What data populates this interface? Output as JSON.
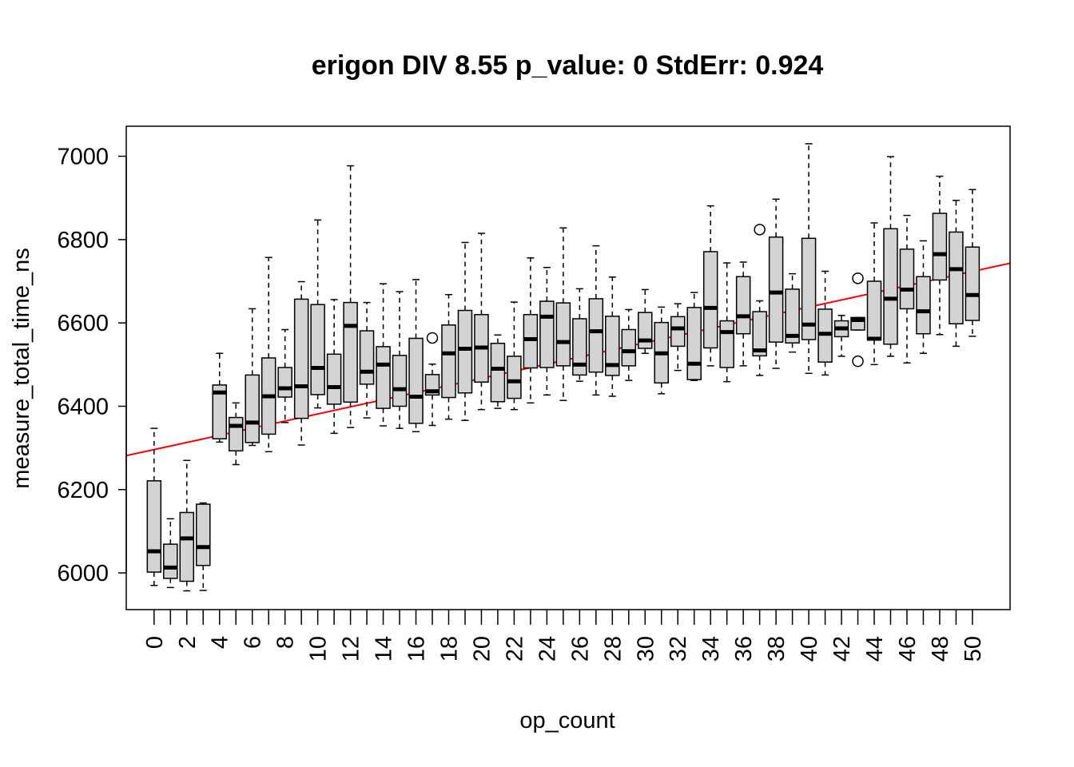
{
  "chart_data": {
    "type": "box",
    "title": "erigon DIV 8.55 p_value: 0 StdErr: 0.924",
    "xlabel": "op_count",
    "ylabel": "measure_total_time_ns",
    "x_categories": [
      0,
      1,
      2,
      3,
      4,
      5,
      6,
      7,
      8,
      9,
      10,
      11,
      12,
      13,
      14,
      15,
      16,
      17,
      18,
      19,
      20,
      21,
      22,
      23,
      24,
      25,
      26,
      27,
      28,
      29,
      30,
      31,
      32,
      33,
      34,
      35,
      36,
      37,
      38,
      39,
      40,
      41,
      42,
      43,
      44,
      45,
      46,
      47,
      48,
      49,
      50
    ],
    "x_tick_labels": [
      "0",
      "2",
      "4",
      "6",
      "8",
      "10",
      "12",
      "14",
      "16",
      "18",
      "20",
      "22",
      "24",
      "26",
      "28",
      "30",
      "32",
      "34",
      "36",
      "38",
      "40",
      "42",
      "44",
      "46",
      "48",
      "50"
    ],
    "y_ticks": [
      6000,
      6200,
      6400,
      6600,
      6800,
      7000
    ],
    "y_tick_labels": [
      "6000",
      "6200",
      "6400",
      "6600",
      "6800",
      "7000"
    ],
    "ylim": [
      5912,
      7072
    ],
    "xlim": [
      -1.7,
      52.3
    ],
    "box_fill": "#d3d3d3",
    "line_color": "#000000",
    "regression": {
      "color": "#ff0000",
      "intercept": 6296,
      "slope": 8.55
    },
    "boxes": [
      {
        "x": 0,
        "min": 5970,
        "q1": 6002,
        "median": 6052,
        "q3": 6221,
        "max": 6347,
        "outliers": []
      },
      {
        "x": 1,
        "min": 5965,
        "q1": 5987,
        "median": 6013,
        "q3": 6069,
        "max": 6130,
        "outliers": []
      },
      {
        "x": 2,
        "min": 5957,
        "q1": 5980,
        "median": 6083,
        "q3": 6145,
        "max": 6270,
        "outliers": []
      },
      {
        "x": 3,
        "min": 5958,
        "q1": 6018,
        "median": 6062,
        "q3": 6165,
        "max": 6168,
        "outliers": []
      },
      {
        "x": 4,
        "min": 6314,
        "q1": 6322,
        "median": 6433,
        "q3": 6451,
        "max": 6527,
        "outliers": []
      },
      {
        "x": 5,
        "min": 6260,
        "q1": 6293,
        "median": 6353,
        "q3": 6373,
        "max": 6408,
        "outliers": []
      },
      {
        "x": 6,
        "min": 6306,
        "q1": 6313,
        "median": 6361,
        "q3": 6475,
        "max": 6634,
        "outliers": []
      },
      {
        "x": 7,
        "min": 6291,
        "q1": 6333,
        "median": 6424,
        "q3": 6516,
        "max": 6757,
        "outliers": []
      },
      {
        "x": 8,
        "min": 6361,
        "q1": 6422,
        "median": 6443,
        "q3": 6493,
        "max": 6584,
        "outliers": []
      },
      {
        "x": 9,
        "min": 6307,
        "q1": 6371,
        "median": 6448,
        "q3": 6657,
        "max": 6699,
        "outliers": []
      },
      {
        "x": 10,
        "min": 6396,
        "q1": 6428,
        "median": 6492,
        "q3": 6644,
        "max": 6847,
        "outliers": []
      },
      {
        "x": 11,
        "min": 6335,
        "q1": 6405,
        "median": 6446,
        "q3": 6525,
        "max": 6656,
        "outliers": []
      },
      {
        "x": 12,
        "min": 6349,
        "q1": 6410,
        "median": 6593,
        "q3": 6649,
        "max": 6977,
        "outliers": []
      },
      {
        "x": 13,
        "min": 6372,
        "q1": 6453,
        "median": 6483,
        "q3": 6581,
        "max": 6649,
        "outliers": []
      },
      {
        "x": 14,
        "min": 6353,
        "q1": 6395,
        "median": 6500,
        "q3": 6543,
        "max": 6694,
        "outliers": []
      },
      {
        "x": 15,
        "min": 6347,
        "q1": 6400,
        "median": 6441,
        "q3": 6522,
        "max": 6675,
        "outliers": []
      },
      {
        "x": 16,
        "min": 6339,
        "q1": 6359,
        "median": 6423,
        "q3": 6563,
        "max": 6704,
        "outliers": []
      },
      {
        "x": 17,
        "min": 6354,
        "q1": 6427,
        "median": 6436,
        "q3": 6476,
        "max": 6501,
        "outliers": [
          6564
        ]
      },
      {
        "x": 18,
        "min": 6369,
        "q1": 6421,
        "median": 6527,
        "q3": 6595,
        "max": 6668,
        "outliers": []
      },
      {
        "x": 19,
        "min": 6366,
        "q1": 6432,
        "median": 6538,
        "q3": 6630,
        "max": 6793,
        "outliers": []
      },
      {
        "x": 20,
        "min": 6392,
        "q1": 6458,
        "median": 6541,
        "q3": 6620,
        "max": 6815,
        "outliers": []
      },
      {
        "x": 21,
        "min": 6395,
        "q1": 6411,
        "median": 6490,
        "q3": 6551,
        "max": 6571,
        "outliers": []
      },
      {
        "x": 22,
        "min": 6392,
        "q1": 6419,
        "median": 6460,
        "q3": 6520,
        "max": 6650,
        "outliers": []
      },
      {
        "x": 23,
        "min": 6408,
        "q1": 6492,
        "median": 6561,
        "q3": 6620,
        "max": 6756,
        "outliers": []
      },
      {
        "x": 24,
        "min": 6427,
        "q1": 6493,
        "median": 6615,
        "q3": 6652,
        "max": 6733,
        "outliers": []
      },
      {
        "x": 25,
        "min": 6414,
        "q1": 6497,
        "median": 6554,
        "q3": 6648,
        "max": 6828,
        "outliers": []
      },
      {
        "x": 26,
        "min": 6460,
        "q1": 6475,
        "median": 6500,
        "q3": 6610,
        "max": 6682,
        "outliers": []
      },
      {
        "x": 27,
        "min": 6427,
        "q1": 6482,
        "median": 6580,
        "q3": 6658,
        "max": 6785,
        "outliers": []
      },
      {
        "x": 28,
        "min": 6424,
        "q1": 6474,
        "median": 6499,
        "q3": 6616,
        "max": 6710,
        "outliers": []
      },
      {
        "x": 29,
        "min": 6462,
        "q1": 6497,
        "median": 6532,
        "q3": 6584,
        "max": 6632,
        "outliers": []
      },
      {
        "x": 30,
        "min": 6527,
        "q1": 6539,
        "median": 6558,
        "q3": 6625,
        "max": 6680,
        "outliers": []
      },
      {
        "x": 31,
        "min": 6430,
        "q1": 6456,
        "median": 6527,
        "q3": 6601,
        "max": 6638,
        "outliers": []
      },
      {
        "x": 32,
        "min": 6486,
        "q1": 6544,
        "median": 6587,
        "q3": 6615,
        "max": 6646,
        "outliers": []
      },
      {
        "x": 33,
        "min": 6462,
        "q1": 6464,
        "median": 6502,
        "q3": 6637,
        "max": 6673,
        "outliers": []
      },
      {
        "x": 34,
        "min": 6497,
        "q1": 6540,
        "median": 6636,
        "q3": 6771,
        "max": 6881,
        "outliers": []
      },
      {
        "x": 35,
        "min": 6459,
        "q1": 6493,
        "median": 6578,
        "q3": 6605,
        "max": 6744,
        "outliers": []
      },
      {
        "x": 36,
        "min": 6497,
        "q1": 6574,
        "median": 6616,
        "q3": 6711,
        "max": 6746,
        "outliers": []
      },
      {
        "x": 37,
        "min": 6474,
        "q1": 6521,
        "median": 6534,
        "q3": 6627,
        "max": 6653,
        "outliers": [
          6824
        ]
      },
      {
        "x": 38,
        "min": 6491,
        "q1": 6554,
        "median": 6673,
        "q3": 6806,
        "max": 6897,
        "outliers": []
      },
      {
        "x": 39,
        "min": 6530,
        "q1": 6552,
        "median": 6569,
        "q3": 6681,
        "max": 6718,
        "outliers": []
      },
      {
        "x": 40,
        "min": 6479,
        "q1": 6560,
        "median": 6596,
        "q3": 6803,
        "max": 7030,
        "outliers": []
      },
      {
        "x": 41,
        "min": 6475,
        "q1": 6506,
        "median": 6574,
        "q3": 6633,
        "max": 6724,
        "outliers": []
      },
      {
        "x": 42,
        "min": 6520,
        "q1": 6567,
        "median": 6587,
        "q3": 6605,
        "max": 6618,
        "outliers": []
      },
      {
        "x": 43,
        "min": 6583,
        "q1": 6583,
        "median": 6607,
        "q3": 6613,
        "max": 6613,
        "outliers": [
          6707,
          6508
        ]
      },
      {
        "x": 44,
        "min": 6500,
        "q1": 6559,
        "median": 6562,
        "q3": 6700,
        "max": 6840,
        "outliers": []
      },
      {
        "x": 45,
        "min": 6520,
        "q1": 6549,
        "median": 6658,
        "q3": 6826,
        "max": 6999,
        "outliers": []
      },
      {
        "x": 46,
        "min": 6504,
        "q1": 6634,
        "median": 6680,
        "q3": 6777,
        "max": 6858,
        "outliers": []
      },
      {
        "x": 47,
        "min": 6527,
        "q1": 6574,
        "median": 6628,
        "q3": 6711,
        "max": 6797,
        "outliers": []
      },
      {
        "x": 48,
        "min": 6572,
        "q1": 6703,
        "median": 6765,
        "q3": 6863,
        "max": 6952,
        "outliers": []
      },
      {
        "x": 49,
        "min": 6544,
        "q1": 6598,
        "median": 6729,
        "q3": 6818,
        "max": 6894,
        "outliers": []
      },
      {
        "x": 50,
        "min": 6568,
        "q1": 6606,
        "median": 6667,
        "q3": 6782,
        "max": 6920,
        "outliers": []
      }
    ]
  }
}
